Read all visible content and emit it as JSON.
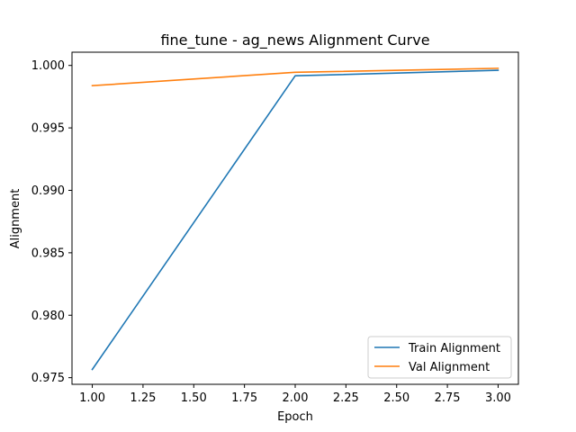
{
  "chart_data": {
    "type": "line",
    "title": "fine_tune - ag_news Alignment Curve",
    "xlabel": "Epoch",
    "ylabel": "Alignment",
    "x": [
      1.0,
      2.0,
      3.0
    ],
    "xticks": [
      "1.00",
      "1.25",
      "1.50",
      "1.75",
      "2.00",
      "2.25",
      "2.50",
      "2.75",
      "3.00"
    ],
    "xtick_values": [
      1.0,
      1.25,
      1.5,
      1.75,
      2.0,
      2.25,
      2.5,
      2.75,
      3.0
    ],
    "yticks": [
      "0.975",
      "0.980",
      "0.985",
      "0.990",
      "0.995",
      "1.000"
    ],
    "ytick_values": [
      0.975,
      0.98,
      0.985,
      0.99,
      0.995,
      1.0
    ],
    "xlim": [
      0.9,
      3.1
    ],
    "ylim": [
      0.97447,
      1.00106
    ],
    "grid": false,
    "legend_position": "lower-right",
    "series": [
      {
        "name": "Train Alignment",
        "color": "#1f77b4",
        "values": [
          0.97566,
          0.99917,
          0.99961
        ]
      },
      {
        "name": "Val Alignment",
        "color": "#ff7f0e",
        "values": [
          0.99838,
          0.99945,
          0.99977
        ]
      }
    ]
  }
}
